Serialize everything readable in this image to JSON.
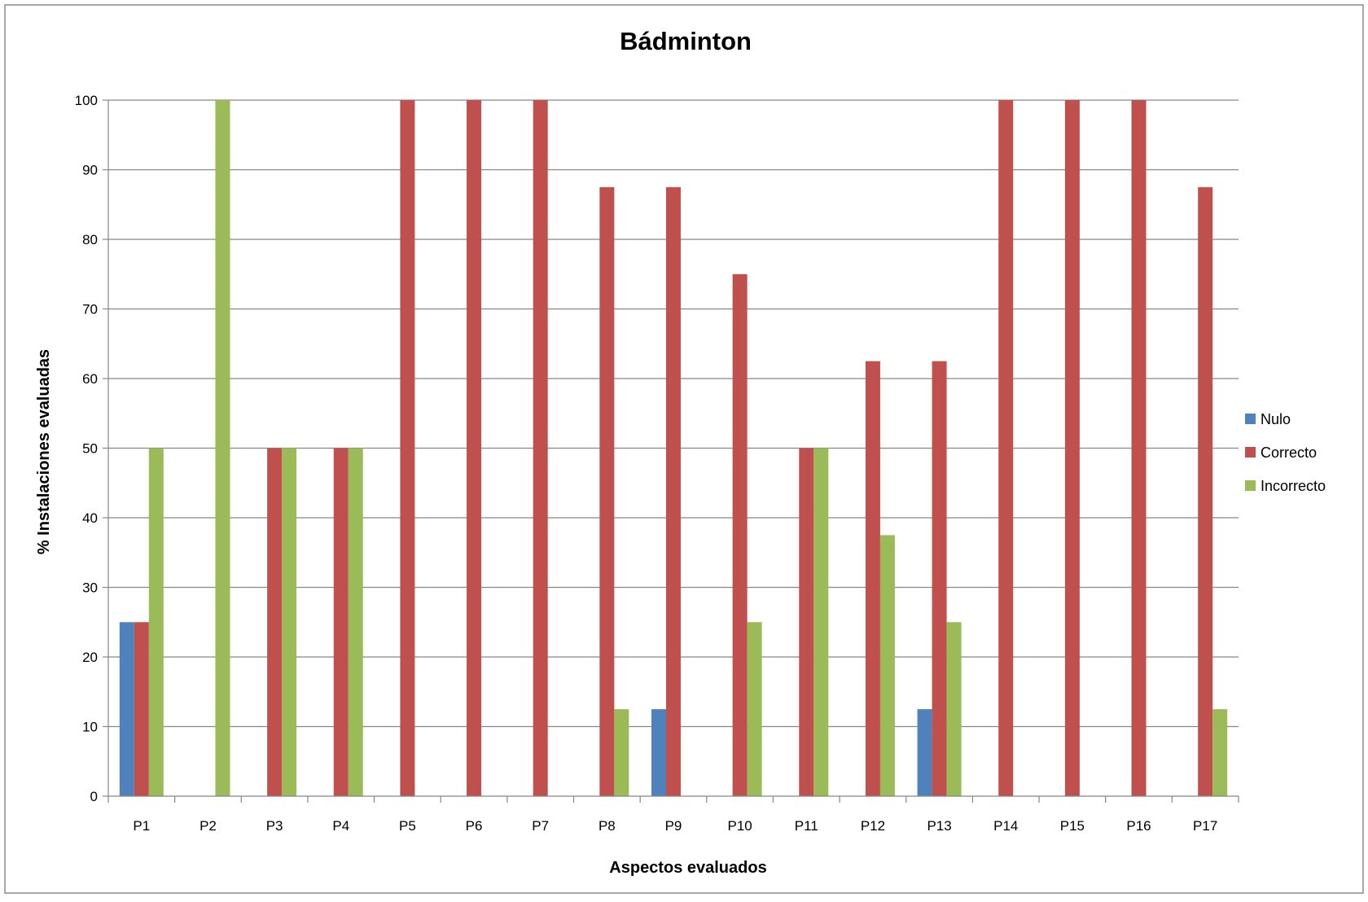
{
  "chart_data": {
    "type": "bar",
    "title": "Bádminton",
    "xlabel": "Aspectos evaluados",
    "ylabel": "% Instalaciones evaluadas",
    "ylim": [
      0,
      100
    ],
    "yticks": [
      0,
      10,
      20,
      30,
      40,
      50,
      60,
      70,
      80,
      90,
      100
    ],
    "grid": true,
    "legend_position": "right",
    "categories": [
      "P1",
      "P2",
      "P3",
      "P4",
      "P5",
      "P6",
      "P7",
      "P8",
      "P9",
      "P10",
      "P11",
      "P12",
      "P13",
      "P14",
      "P15",
      "P16",
      "P17"
    ],
    "series": [
      {
        "name": "Nulo",
        "color": "#4F81BD",
        "values": [
          25,
          0,
          0,
          0,
          0,
          0,
          0,
          0,
          12.5,
          0,
          0,
          0,
          12.5,
          0,
          0,
          0,
          0
        ]
      },
      {
        "name": "Correcto",
        "color": "#C0504D",
        "values": [
          25,
          0,
          50,
          50,
          100,
          100,
          100,
          87.5,
          87.5,
          75,
          50,
          62.5,
          62.5,
          100,
          100,
          100,
          87.5
        ]
      },
      {
        "name": "Incorrecto",
        "color": "#9BBB59",
        "values": [
          50,
          100,
          50,
          50,
          0,
          0,
          0,
          12.5,
          0,
          25,
          50,
          37.5,
          25,
          0,
          0,
          0,
          12.5
        ]
      }
    ]
  }
}
